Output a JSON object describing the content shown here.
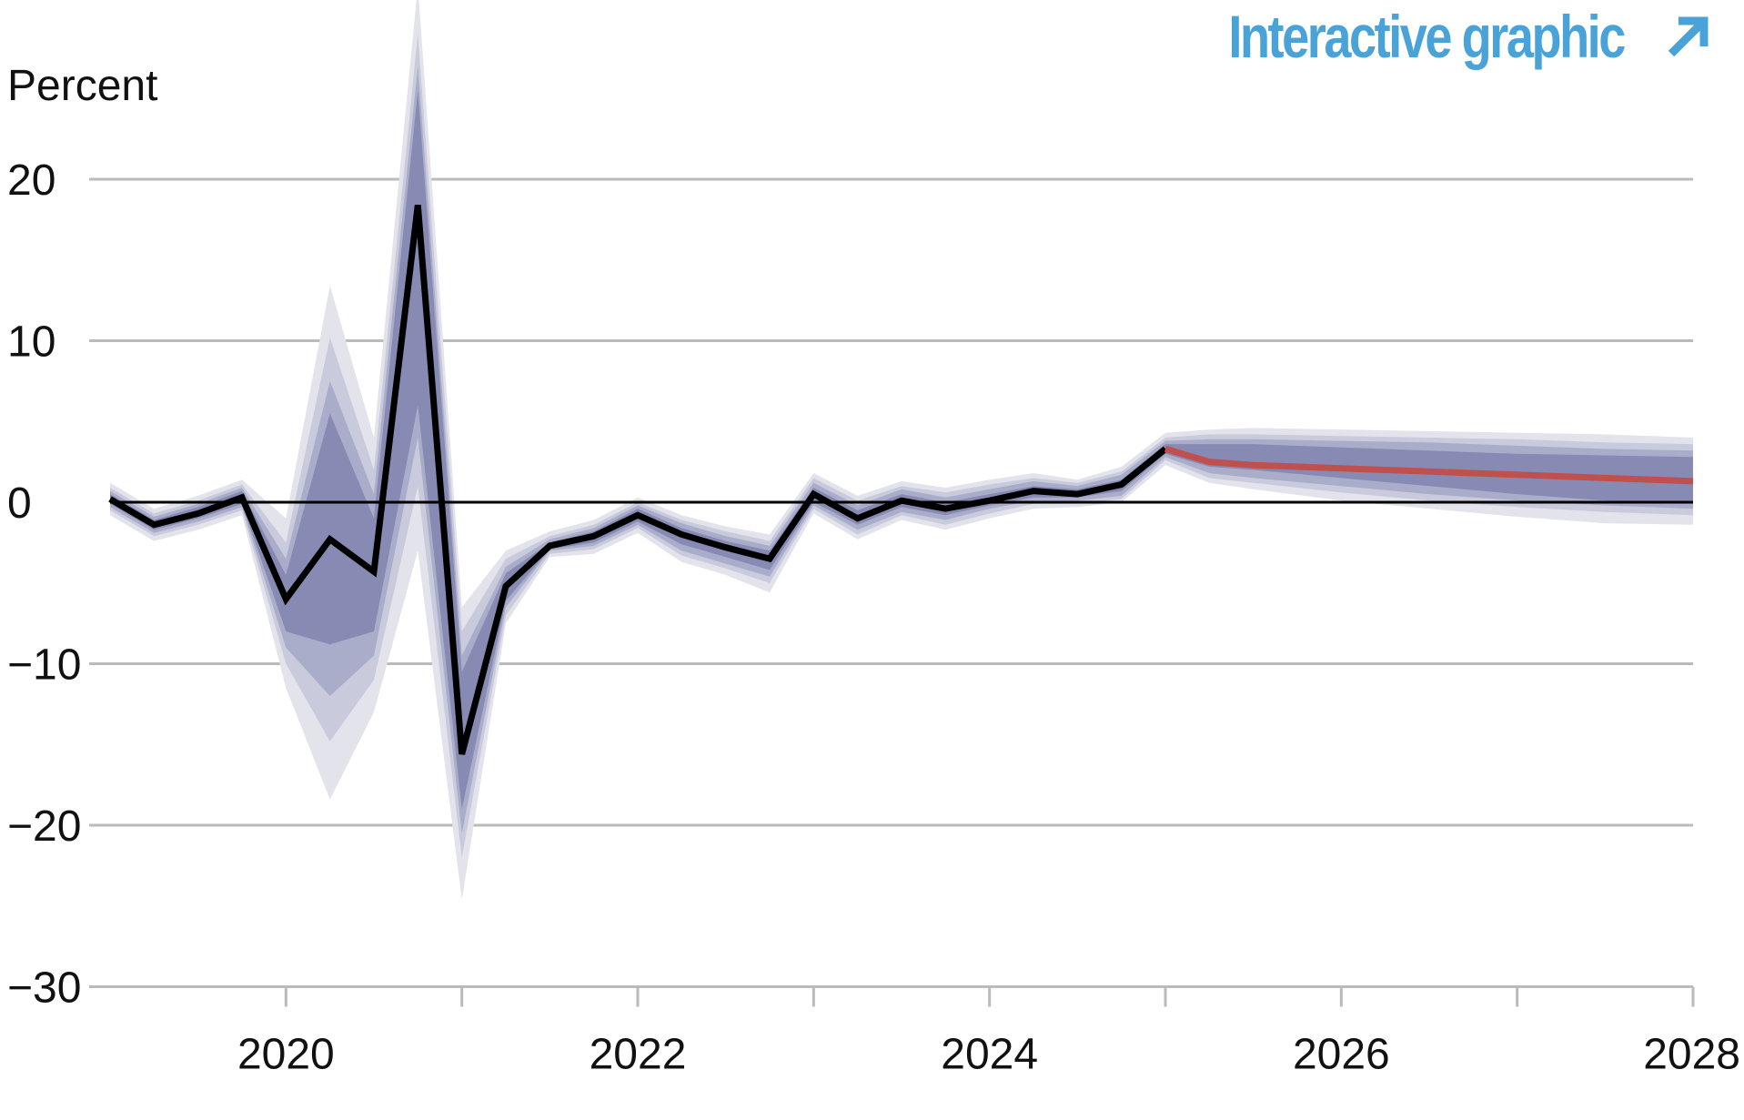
{
  "link": {
    "label": "Interactive graphic",
    "icon": "arrow-up-right-icon",
    "color": "#4aa3d8"
  },
  "chart_data": {
    "type": "line",
    "y_unit_label": "Percent",
    "ylim": [
      -30,
      25
    ],
    "yticks": [
      20,
      10,
      0,
      -10,
      -20,
      -30
    ],
    "ytick_labels": [
      "20",
      "10",
      "0",
      "−10",
      "−20",
      "−30"
    ],
    "xlim": [
      2019.0,
      2028.0
    ],
    "xticks": [
      2020,
      2021,
      2022,
      2023,
      2024,
      2025,
      2026,
      2027,
      2028
    ],
    "xtick_labels": [
      {
        "year": 2020,
        "label": "2020"
      },
      {
        "year": 2022,
        "label": "2022"
      },
      {
        "year": 2024,
        "label": "2024"
      },
      {
        "year": 2026,
        "label": "2026"
      },
      {
        "year": 2028,
        "label": "2028"
      }
    ],
    "grid": true,
    "colors": {
      "actual": "#000000",
      "forecast": "#c0504d",
      "grid": "#bbbbbb",
      "zero": "#000000",
      "band_outer": "#e3e3ec",
      "band_2": "#c9cadc",
      "band_3": "#aaadc9",
      "band_inner": "#878bb3"
    },
    "series": [
      {
        "role": "actual",
        "x": [
          2019.0,
          2019.25,
          2019.5,
          2019.75,
          2020.0,
          2020.25,
          2020.5,
          2020.75,
          2021.0,
          2021.25,
          2021.5,
          2021.75,
          2022.0,
          2022.25,
          2022.5,
          2022.75,
          2023.0,
          2023.25,
          2023.5,
          2023.75,
          2024.0,
          2024.25,
          2024.5,
          2024.75,
          2025.0
        ],
        "y": [
          0.2,
          -1.4,
          -0.7,
          0.3,
          -6.0,
          -2.3,
          -4.3,
          18.4,
          -15.6,
          -5.2,
          -2.7,
          -2.1,
          -0.8,
          -2.0,
          -2.8,
          -3.5,
          0.5,
          -1.0,
          0.1,
          -0.4,
          0.1,
          0.7,
          0.5,
          1.1,
          3.3
        ]
      },
      {
        "role": "forecast",
        "x": [
          2025.0,
          2025.25,
          2025.5,
          2026.0,
          2026.5,
          2027.0,
          2027.5,
          2028.0
        ],
        "y": [
          3.3,
          2.5,
          2.3,
          2.1,
          1.9,
          1.7,
          1.5,
          1.3
        ]
      }
    ],
    "probability_bands": {
      "x": [
        2019.0,
        2019.25,
        2019.5,
        2019.75,
        2020.0,
        2020.25,
        2020.5,
        2020.75,
        2021.0,
        2021.25,
        2021.5,
        2021.75,
        2022.0,
        2022.25,
        2022.5,
        2022.75,
        2023.0,
        2023.25,
        2023.5,
        2023.75,
        2024.0,
        2024.25,
        2024.5,
        2024.75,
        2025.0,
        2025.25,
        2025.5,
        2026.0,
        2026.5,
        2027.0,
        2027.5,
        2028.0
      ],
      "bands": [
        {
          "level": "outer",
          "upper": [
            1.2,
            -0.4,
            0.4,
            1.4,
            -1.0,
            13.4,
            4.0,
            32.0,
            -6.5,
            -3.0,
            -1.8,
            -1.1,
            0.3,
            -0.8,
            -1.5,
            -2.0,
            1.8,
            0.4,
            1.3,
            0.9,
            1.4,
            1.8,
            1.4,
            2.2,
            4.3,
            4.5,
            4.6,
            4.5,
            4.4,
            4.3,
            4.2,
            4.0
          ],
          "lower": [
            -0.8,
            -2.4,
            -1.7,
            -0.8,
            -11.5,
            -18.4,
            -13.0,
            -3.0,
            -24.6,
            -7.5,
            -3.4,
            -3.2,
            -1.9,
            -3.7,
            -4.5,
            -5.6,
            -0.7,
            -2.3,
            -1.1,
            -1.7,
            -1.0,
            -0.4,
            -0.3,
            0.0,
            2.3,
            1.2,
            0.8,
            0.1,
            -0.4,
            -0.9,
            -1.3,
            -1.4
          ]
        },
        {
          "level": "2",
          "upper": [
            0.9,
            -0.7,
            0.1,
            1.1,
            -2.5,
            10.2,
            2.0,
            29.0,
            -8.0,
            -3.5,
            -2.1,
            -1.4,
            0.0,
            -1.1,
            -1.8,
            -2.4,
            1.5,
            0.1,
            1.0,
            0.6,
            1.1,
            1.5,
            1.2,
            1.9,
            4.0,
            4.2,
            4.2,
            4.1,
            4.0,
            3.9,
            3.7,
            3.6
          ],
          "lower": [
            -0.5,
            -2.1,
            -1.4,
            -0.5,
            -10.0,
            -14.8,
            -11.0,
            1.0,
            -22.0,
            -7.0,
            -3.2,
            -2.9,
            -1.6,
            -3.3,
            -4.1,
            -5.0,
            -0.4,
            -2.0,
            -0.8,
            -1.4,
            -0.7,
            -0.1,
            -0.1,
            0.2,
            2.6,
            1.5,
            1.2,
            0.6,
            0.1,
            -0.3,
            -0.6,
            -0.8
          ]
        },
        {
          "level": "3",
          "upper": [
            0.7,
            -0.9,
            -0.1,
            0.9,
            -3.5,
            7.5,
            0.5,
            27.0,
            -9.5,
            -4.0,
            -2.3,
            -1.6,
            -0.2,
            -1.3,
            -2.1,
            -2.7,
            1.2,
            -0.2,
            0.8,
            0.3,
            0.8,
            1.3,
            1.0,
            1.7,
            3.8,
            3.9,
            3.9,
            3.8,
            3.7,
            3.5,
            3.3,
            3.2
          ],
          "lower": [
            -0.3,
            -1.9,
            -1.2,
            -0.3,
            -9.0,
            -12.0,
            -9.5,
            4.0,
            -20.5,
            -6.5,
            -3.0,
            -2.7,
            -1.4,
            -3.0,
            -3.8,
            -4.6,
            -0.2,
            -1.7,
            -0.6,
            -1.1,
            -0.4,
            0.1,
            0.1,
            0.4,
            2.8,
            1.8,
            1.5,
            1.0,
            0.5,
            0.1,
            -0.2,
            -0.4
          ]
        },
        {
          "level": "inner",
          "upper": [
            0.5,
            -1.1,
            -0.3,
            0.7,
            -4.5,
            5.5,
            -1.0,
            25.5,
            -10.5,
            -4.4,
            -2.5,
            -1.8,
            -0.4,
            -1.6,
            -2.4,
            -3.0,
            0.9,
            -0.5,
            0.5,
            0.0,
            0.5,
            1.0,
            0.8,
            1.4,
            3.6,
            3.6,
            3.6,
            3.4,
            3.2,
            3.0,
            2.9,
            2.8
          ],
          "lower": [
            -0.1,
            -1.7,
            -1.0,
            -0.1,
            -8.0,
            -8.8,
            -8.0,
            6.0,
            -19.0,
            -6.1,
            -2.9,
            -2.5,
            -1.2,
            -2.6,
            -3.4,
            -4.2,
            0.0,
            -1.4,
            -0.3,
            -0.8,
            -0.2,
            0.3,
            0.3,
            0.7,
            3.0,
            2.2,
            2.0,
            1.5,
            1.0,
            0.5,
            0.1,
            0.0
          ]
        }
      ]
    }
  }
}
